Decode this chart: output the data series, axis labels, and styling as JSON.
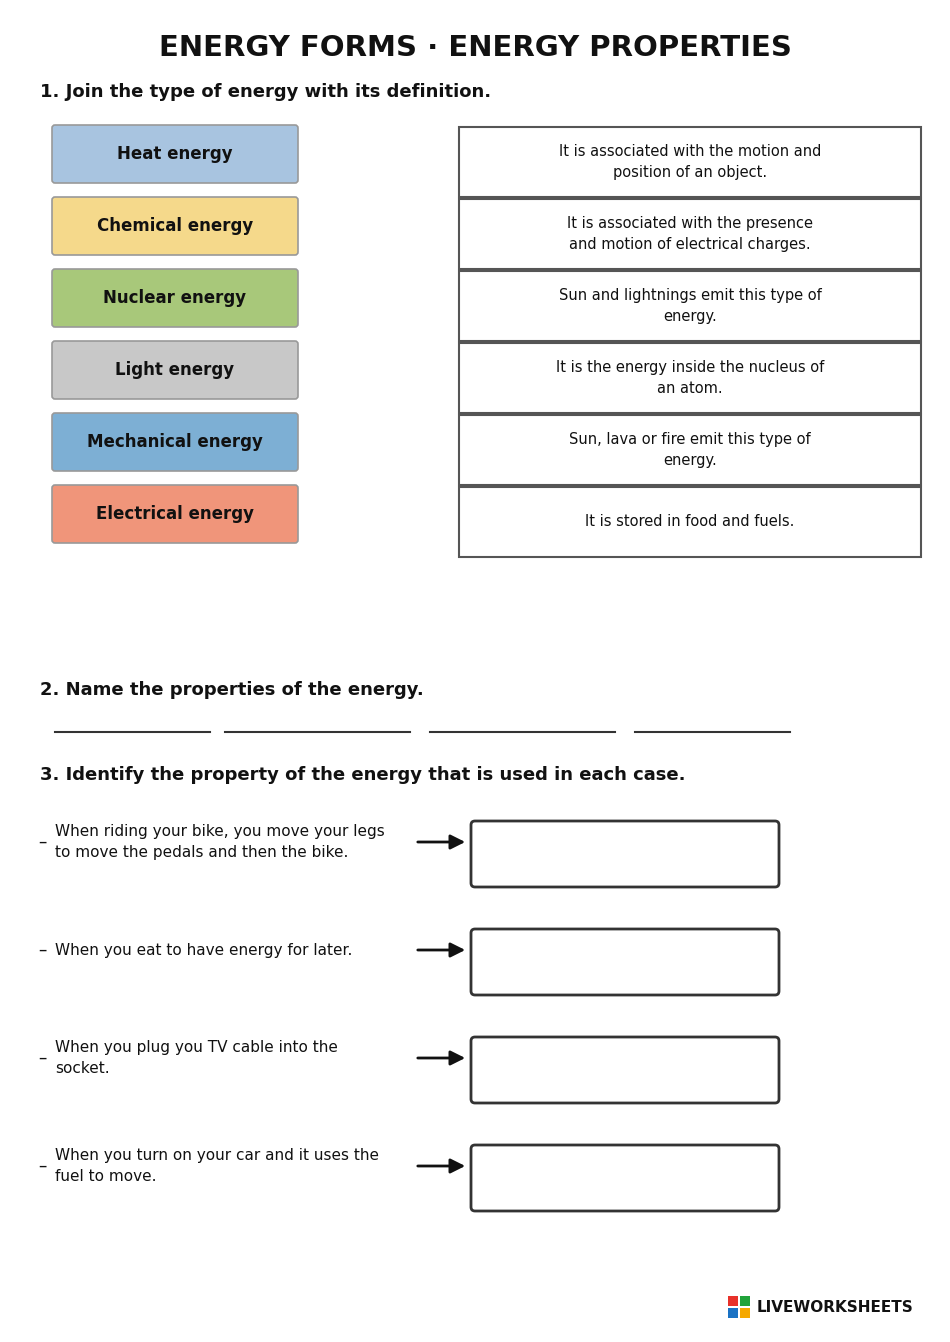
{
  "title": "ENERGY FORMS · ENERGY PROPERTIES",
  "bg_color": "#ffffff",
  "section1_label": "1. Join the type of energy with its definition.",
  "section2_label": "2. Name the properties of the energy.",
  "section3_label": "3. Identify the property of the energy that is used in each case.",
  "energy_types": [
    {
      "label": "Heat energy",
      "color": "#a8c4e0"
    },
    {
      "label": "Chemical energy",
      "color": "#f5d98b"
    },
    {
      "label": "Nuclear energy",
      "color": "#a8c87a"
    },
    {
      "label": "Light energy",
      "color": "#c8c8c8"
    },
    {
      "label": "Mechanical energy",
      "color": "#7dafd4"
    },
    {
      "label": "Electrical energy",
      "color": "#f0957a"
    }
  ],
  "definitions": [
    "It is associated with the motion and\nposition of an object.",
    "It is associated with the presence\nand motion of electrical charges.",
    "Sun and lightnings emit this type of\nenergy.",
    "It is the energy inside the nucleus of\nan atom.",
    "Sun, lava or fire emit this type of\nenergy.",
    "It is stored in food and fuels."
  ],
  "section3_items": [
    "When riding your bike, you move your legs\nto move the pedals and then the bike.",
    "When you eat to have energy for later.",
    "When you plug you TV cable into the\nsocket.",
    "When you turn on your car and it uses the\nfuel to move."
  ],
  "logo_colors": [
    "#e8312a",
    "#21a33a",
    "#1a72c4",
    "#f5a800"
  ]
}
